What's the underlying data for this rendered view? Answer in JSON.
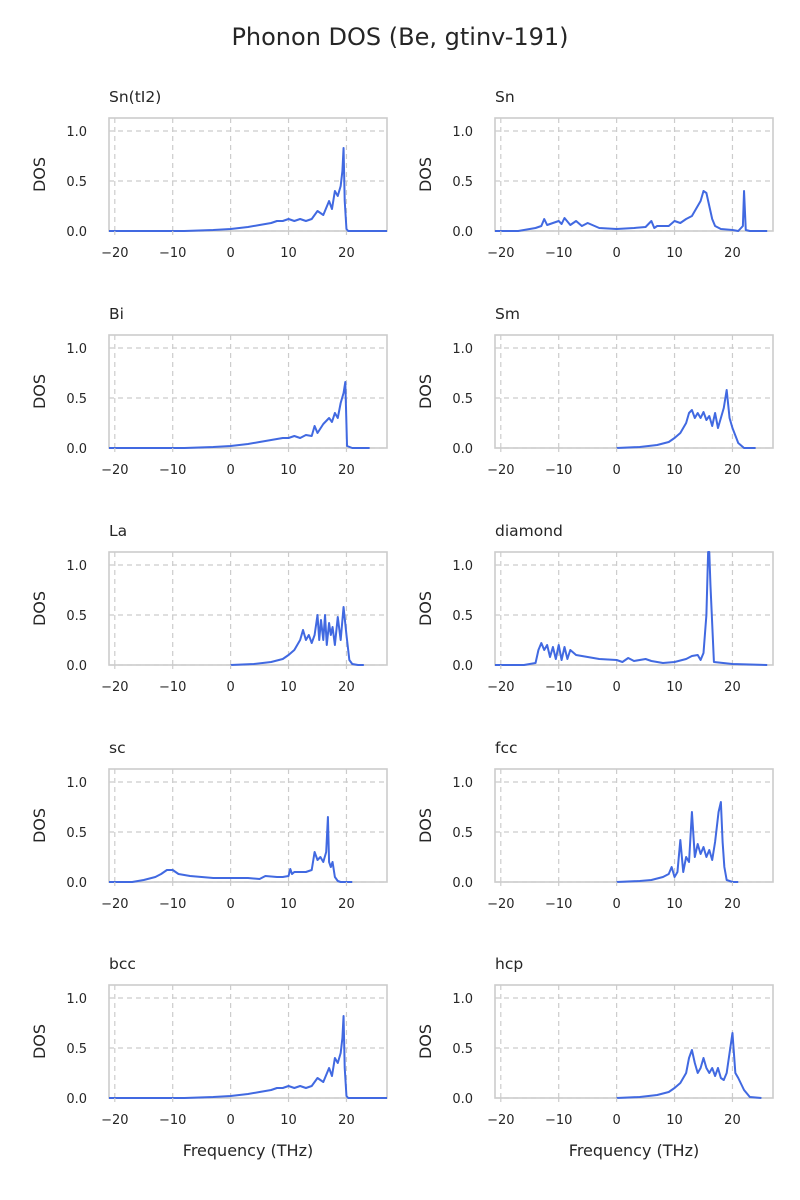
{
  "figure": {
    "title": "Phonon DOS (Be, gtinv-191)",
    "line_color": "#4169e1"
  },
  "chart_data": [
    {
      "type": "line",
      "title": "Sn(tI2)",
      "xlabel": "",
      "ylabel": "DOS",
      "xlim": [
        -21,
        27
      ],
      "ylim": [
        0,
        1.13
      ],
      "xticks": [
        -20,
        -10,
        0,
        10,
        20
      ],
      "yticks": [
        0.0,
        0.5,
        1.0
      ],
      "x": [
        -21,
        -8,
        -3,
        0,
        3,
        5,
        7,
        8,
        9,
        10,
        11,
        12,
        13,
        14,
        15,
        16,
        17,
        17.5,
        18,
        18.5,
        19,
        19.3,
        19.5,
        19.7,
        20,
        20.3,
        21,
        27
      ],
      "y": [
        0,
        0,
        0.01,
        0.02,
        0.04,
        0.06,
        0.08,
        0.1,
        0.1,
        0.12,
        0.1,
        0.12,
        0.1,
        0.12,
        0.2,
        0.16,
        0.3,
        0.22,
        0.4,
        0.35,
        0.45,
        0.6,
        0.83,
        0.3,
        0.02,
        0,
        0,
        0
      ]
    },
    {
      "type": "line",
      "title": "Sn",
      "xlabel": "",
      "ylabel": "DOS",
      "xlim": [
        -21,
        27
      ],
      "ylim": [
        0,
        1.13
      ],
      "xticks": [
        -20,
        -10,
        0,
        10,
        20
      ],
      "yticks": [
        0.0,
        0.5,
        1.0
      ],
      "x": [
        -21,
        -17,
        -14,
        -13,
        -12.5,
        -12,
        -11,
        -10,
        -9.5,
        -9,
        -8,
        -7,
        -6,
        -5,
        -3,
        0,
        3,
        5,
        6,
        6.5,
        7,
        9,
        10,
        11,
        12,
        13,
        14,
        14.5,
        15,
        15.5,
        16,
        16.5,
        17,
        18,
        20,
        21,
        21.8,
        22,
        22.3,
        23,
        26
      ],
      "y": [
        0,
        0,
        0.03,
        0.05,
        0.12,
        0.06,
        0.08,
        0.1,
        0.07,
        0.13,
        0.06,
        0.1,
        0.05,
        0.08,
        0.03,
        0.02,
        0.03,
        0.04,
        0.1,
        0.03,
        0.05,
        0.05,
        0.1,
        0.08,
        0.12,
        0.15,
        0.25,
        0.3,
        0.4,
        0.38,
        0.25,
        0.12,
        0.05,
        0.02,
        0.01,
        0,
        0.05,
        0.4,
        0.01,
        0,
        0
      ]
    },
    {
      "type": "line",
      "title": "Bi",
      "xlabel": "",
      "ylabel": "DOS",
      "xlim": [
        -21,
        27
      ],
      "ylim": [
        0,
        1.13
      ],
      "xticks": [
        -20,
        -10,
        0,
        10,
        20
      ],
      "yticks": [
        0.0,
        0.5,
        1.0
      ],
      "x": [
        -21,
        -8,
        -3,
        0,
        3,
        5,
        7,
        9,
        10,
        11,
        12,
        13,
        14,
        14.5,
        15,
        16,
        17,
        17.5,
        18,
        18.5,
        19,
        19.5,
        19.8,
        20.1,
        21,
        24
      ],
      "y": [
        0,
        0,
        0.01,
        0.02,
        0.04,
        0.06,
        0.08,
        0.1,
        0.1,
        0.12,
        0.1,
        0.13,
        0.12,
        0.22,
        0.15,
        0.24,
        0.3,
        0.26,
        0.35,
        0.3,
        0.45,
        0.55,
        0.66,
        0.02,
        0,
        0
      ]
    },
    {
      "type": "line",
      "title": "Sm",
      "xlabel": "",
      "ylabel": "DOS",
      "xlim": [
        -21,
        27
      ],
      "ylim": [
        0,
        1.13
      ],
      "xticks": [
        -20,
        -10,
        0,
        10,
        20
      ],
      "yticks": [
        0.0,
        0.5,
        1.0
      ],
      "x": [
        0,
        4,
        7,
        9,
        10,
        11,
        12,
        12.5,
        13,
        13.5,
        14,
        14.5,
        15,
        15.5,
        16,
        16.5,
        17,
        17.5,
        18,
        18.5,
        19,
        19.5,
        20,
        21,
        22,
        24
      ],
      "y": [
        0,
        0.01,
        0.03,
        0.06,
        0.1,
        0.15,
        0.25,
        0.35,
        0.38,
        0.3,
        0.35,
        0.3,
        0.36,
        0.28,
        0.32,
        0.22,
        0.35,
        0.2,
        0.3,
        0.4,
        0.58,
        0.3,
        0.2,
        0.05,
        0,
        0
      ]
    },
    {
      "type": "line",
      "title": "La",
      "xlabel": "",
      "ylabel": "DOS",
      "xlim": [
        -21,
        27
      ],
      "ylim": [
        0,
        1.13
      ],
      "xticks": [
        -20,
        -10,
        0,
        10,
        20
      ],
      "yticks": [
        0.0,
        0.5,
        1.0
      ],
      "x": [
        0,
        4,
        7,
        9,
        10,
        11,
        12,
        12.5,
        13,
        13.5,
        14,
        14.5,
        15,
        15.3,
        15.6,
        16,
        16.3,
        16.6,
        17,
        17.3,
        17.6,
        18,
        18.5,
        19,
        19.5,
        20,
        20.5,
        21,
        22,
        23
      ],
      "y": [
        0,
        0.01,
        0.03,
        0.06,
        0.1,
        0.15,
        0.25,
        0.35,
        0.25,
        0.3,
        0.22,
        0.3,
        0.5,
        0.25,
        0.45,
        0.25,
        0.5,
        0.2,
        0.42,
        0.3,
        0.38,
        0.2,
        0.48,
        0.25,
        0.58,
        0.3,
        0.05,
        0.01,
        0,
        0
      ]
    },
    {
      "type": "line",
      "title": "diamond",
      "xlabel": "",
      "ylabel": "DOS",
      "xlim": [
        -21,
        27
      ],
      "ylim": [
        0,
        1.13
      ],
      "xticks": [
        -20,
        -10,
        0,
        10,
        20
      ],
      "yticks": [
        0.0,
        0.5,
        1.0
      ],
      "x": [
        -21,
        -16,
        -14,
        -13.5,
        -13,
        -12.5,
        -12,
        -11.5,
        -11,
        -10.5,
        -10,
        -9.5,
        -9,
        -8.5,
        -8,
        -7,
        -5,
        -3,
        0,
        1,
        2,
        3,
        5,
        6,
        8,
        10,
        12,
        13,
        14,
        14.5,
        15,
        15.5,
        15.8,
        16,
        16.2,
        16.8,
        20,
        26
      ],
      "y": [
        0,
        0,
        0.02,
        0.15,
        0.22,
        0.15,
        0.2,
        0.08,
        0.18,
        0.06,
        0.2,
        0.05,
        0.18,
        0.06,
        0.15,
        0.1,
        0.08,
        0.06,
        0.05,
        0.03,
        0.07,
        0.04,
        0.06,
        0.04,
        0.02,
        0.03,
        0.06,
        0.09,
        0.1,
        0.05,
        0.12,
        0.5,
        1.13,
        1.13,
        0.8,
        0.03,
        0.01,
        0
      ]
    },
    {
      "type": "line",
      "title": "sc",
      "xlabel": "",
      "ylabel": "DOS",
      "xlim": [
        -21,
        27
      ],
      "ylim": [
        0,
        1.13
      ],
      "xticks": [
        -20,
        -10,
        0,
        10,
        20
      ],
      "yticks": [
        0.0,
        0.5,
        1.0
      ],
      "x": [
        -21,
        -17,
        -15,
        -13,
        -12,
        -11,
        -10,
        -9,
        -7,
        -5,
        -3,
        0,
        3,
        5,
        6,
        8,
        9,
        10,
        10.3,
        10.6,
        11,
        13,
        14,
        14.5,
        15,
        15.5,
        16,
        16.5,
        16.8,
        17,
        17.3,
        17.6,
        18,
        18.5,
        19,
        21
      ],
      "y": [
        0,
        0,
        0.02,
        0.05,
        0.08,
        0.12,
        0.12,
        0.08,
        0.06,
        0.05,
        0.04,
        0.04,
        0.04,
        0.03,
        0.06,
        0.05,
        0.05,
        0.06,
        0.13,
        0.08,
        0.1,
        0.1,
        0.12,
        0.3,
        0.22,
        0.25,
        0.2,
        0.3,
        0.65,
        0.2,
        0.15,
        0.2,
        0.05,
        0.01,
        0,
        0
      ]
    },
    {
      "type": "line",
      "title": "fcc",
      "xlabel": "",
      "ylabel": "DOS",
      "xlim": [
        -21,
        27
      ],
      "ylim": [
        0,
        1.13
      ],
      "xticks": [
        -20,
        -10,
        0,
        10,
        20
      ],
      "yticks": [
        0.0,
        0.5,
        1.0
      ],
      "x": [
        0,
        4,
        6,
        8,
        9,
        9.5,
        10,
        10.5,
        11,
        11.5,
        12,
        12.5,
        13,
        13.5,
        14,
        14.5,
        15,
        15.5,
        16,
        16.5,
        17,
        17.3,
        17.6,
        18,
        18.3,
        18.6,
        19,
        19.5,
        20,
        21
      ],
      "y": [
        0,
        0.01,
        0.02,
        0.05,
        0.08,
        0.15,
        0.05,
        0.1,
        0.42,
        0.1,
        0.25,
        0.2,
        0.7,
        0.25,
        0.38,
        0.28,
        0.35,
        0.25,
        0.32,
        0.22,
        0.4,
        0.55,
        0.7,
        0.8,
        0.4,
        0.15,
        0.02,
        0.01,
        0,
        0
      ]
    },
    {
      "type": "line",
      "title": "bcc",
      "xlabel": "Frequency (THz)",
      "ylabel": "DOS",
      "xlim": [
        -21,
        27
      ],
      "ylim": [
        0,
        1.13
      ],
      "xticks": [
        -20,
        -10,
        0,
        10,
        20
      ],
      "yticks": [
        0.0,
        0.5,
        1.0
      ],
      "x": [
        -21,
        -8,
        -3,
        0,
        3,
        5,
        7,
        8,
        9,
        10,
        11,
        12,
        13,
        14,
        15,
        16,
        17,
        17.5,
        18,
        18.5,
        19,
        19.3,
        19.5,
        19.7,
        20,
        20.3,
        21,
        27
      ],
      "y": [
        0,
        0,
        0.01,
        0.02,
        0.04,
        0.06,
        0.08,
        0.1,
        0.1,
        0.12,
        0.1,
        0.12,
        0.1,
        0.12,
        0.2,
        0.16,
        0.3,
        0.22,
        0.4,
        0.35,
        0.45,
        0.6,
        0.82,
        0.3,
        0.02,
        0,
        0,
        0
      ]
    },
    {
      "type": "line",
      "title": "hcp",
      "xlabel": "Frequency (THz)",
      "ylabel": "DOS",
      "xlim": [
        -21,
        27
      ],
      "ylim": [
        0,
        1.13
      ],
      "xticks": [
        -20,
        -10,
        0,
        10,
        20
      ],
      "yticks": [
        0.0,
        0.5,
        1.0
      ],
      "x": [
        0,
        4,
        7,
        9,
        10,
        11,
        12,
        12.5,
        13,
        13.5,
        14,
        14.5,
        15,
        15.5,
        16,
        16.5,
        17,
        17.5,
        18,
        18.5,
        19,
        19.5,
        20,
        20.5,
        21,
        22,
        23,
        25
      ],
      "y": [
        0,
        0.01,
        0.03,
        0.06,
        0.1,
        0.15,
        0.25,
        0.4,
        0.48,
        0.35,
        0.25,
        0.3,
        0.4,
        0.3,
        0.25,
        0.3,
        0.22,
        0.3,
        0.2,
        0.18,
        0.25,
        0.45,
        0.65,
        0.25,
        0.2,
        0.08,
        0.01,
        0
      ]
    }
  ]
}
